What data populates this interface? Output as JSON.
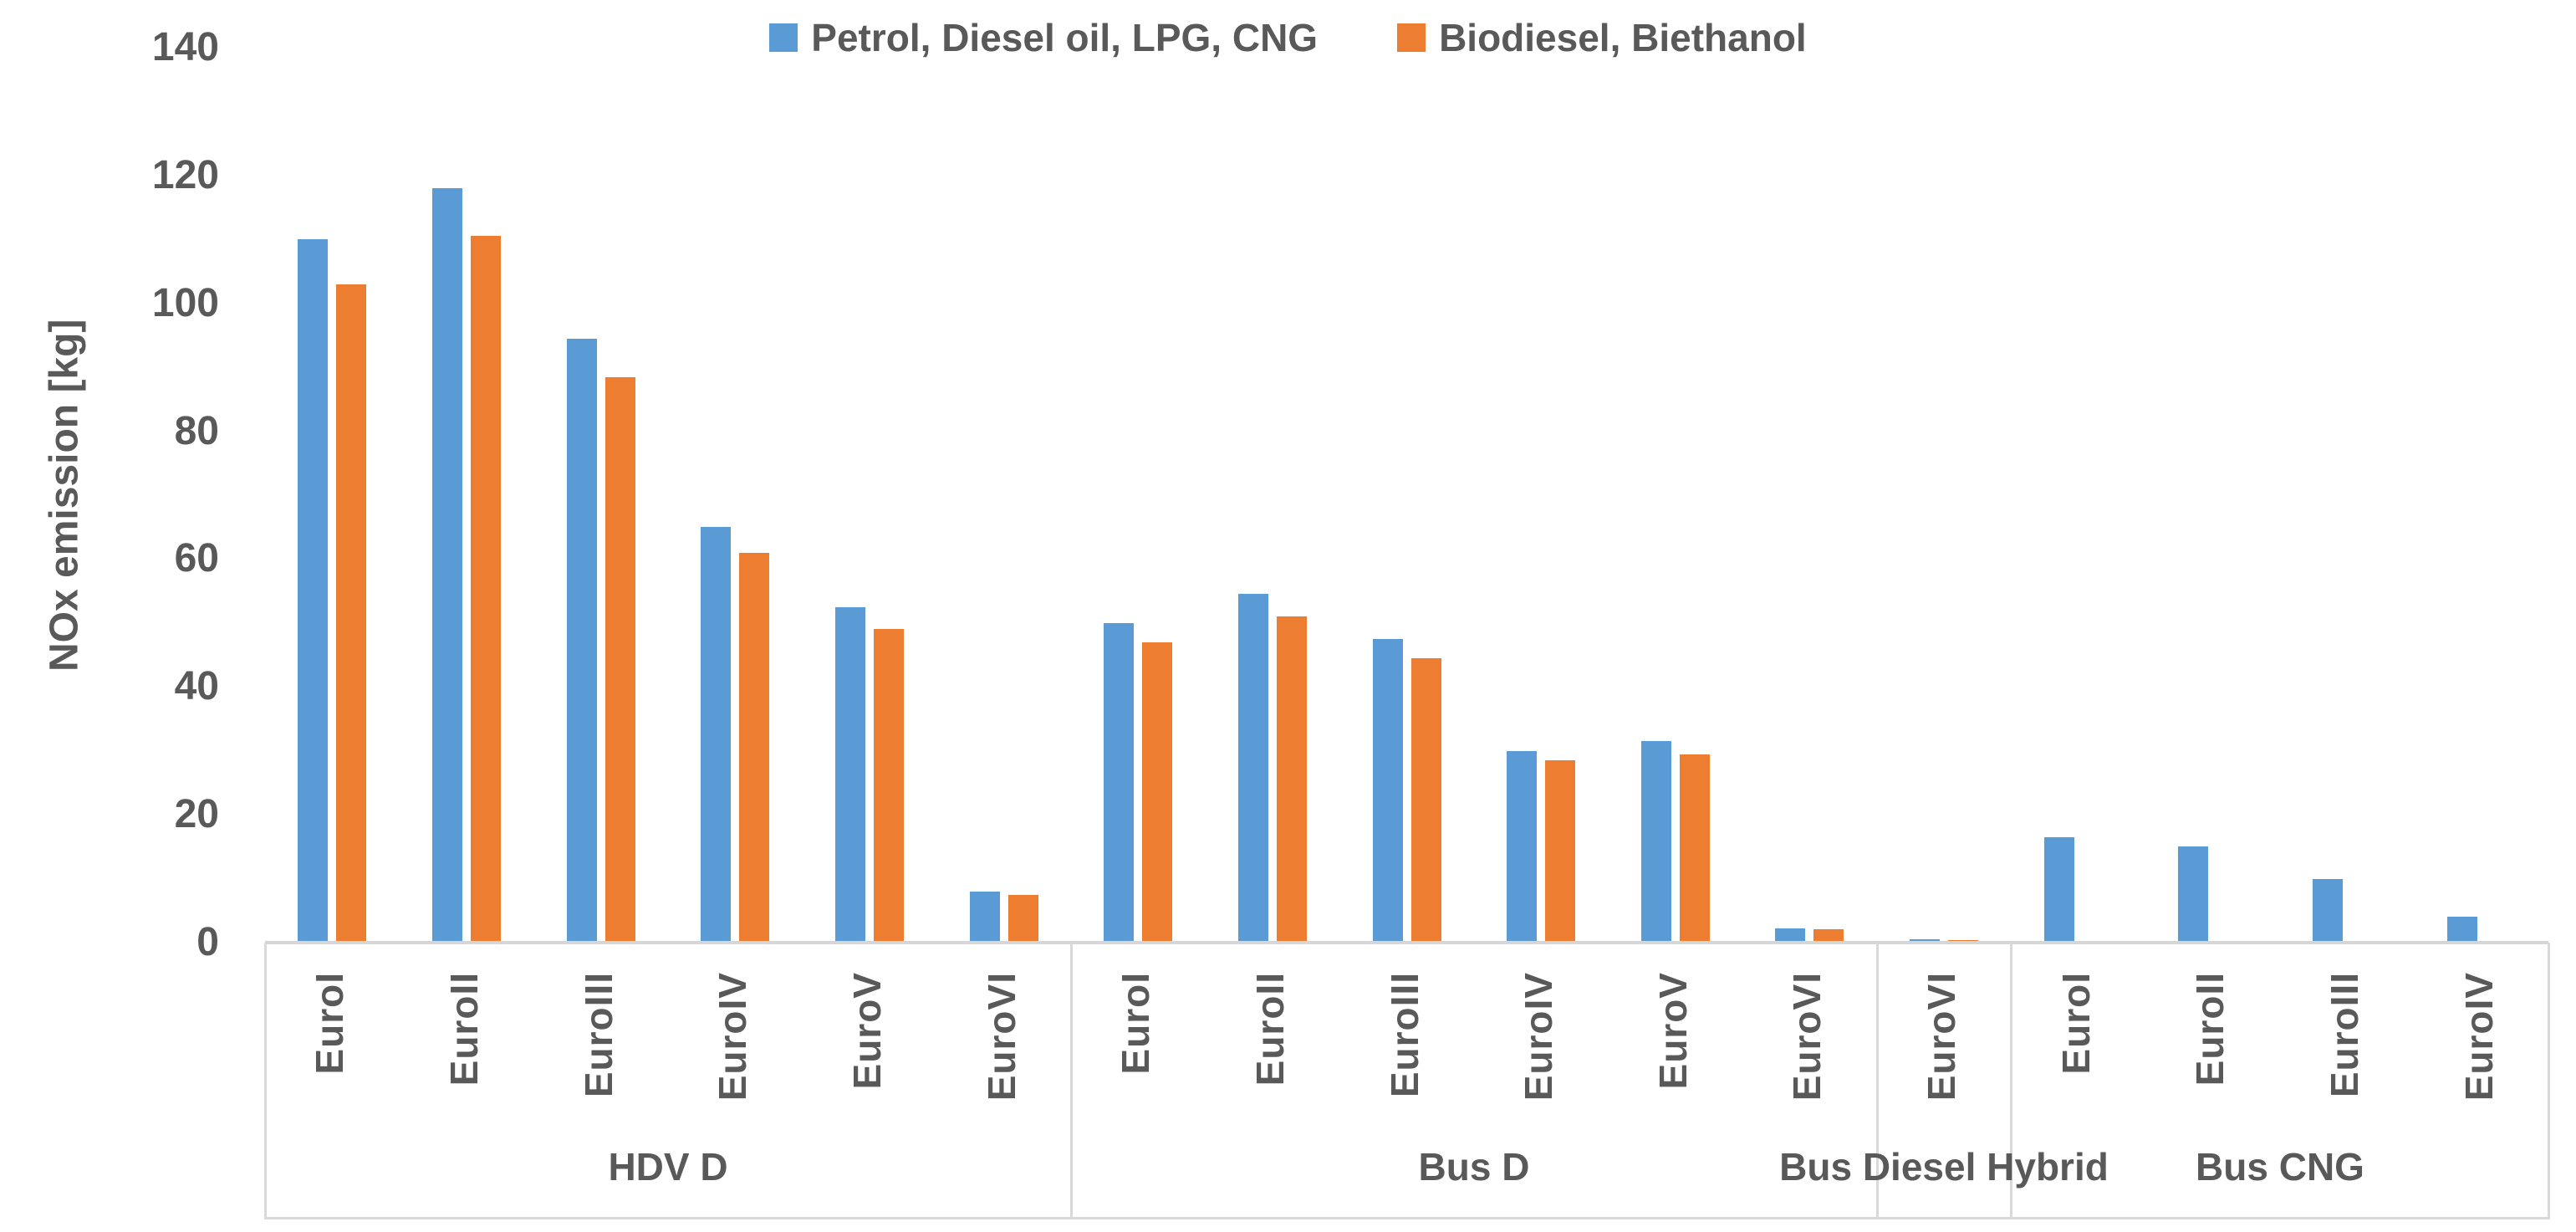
{
  "accent_colors": {
    "series1": "#5B9BD5",
    "series2": "#ED7D31",
    "text": "#595959",
    "axis": "#D6D6D6",
    "grid_box": "#D9D9D9"
  },
  "legend": {
    "entries": [
      {
        "label": "Petrol, Diesel oil, LPG, CNG",
        "color": "#5B9BD5"
      },
      {
        "label": "Biodiesel, Biethanol",
        "color": "#ED7D31"
      }
    ]
  },
  "chart_data": {
    "type": "bar",
    "title": "",
    "ylabel": "NOx emission [kg]",
    "ylim": [
      0,
      140
    ],
    "yticks": [
      0,
      20,
      40,
      60,
      80,
      100,
      120,
      140
    ],
    "grid": false,
    "legend_position": "top",
    "series": [
      {
        "name": "Petrol, Diesel oil, LPG, CNG",
        "color": "#5B9BD5"
      },
      {
        "name": "Biodiesel, Biethanol",
        "color": "#ED7D31"
      }
    ],
    "groups": [
      {
        "label": "HDV D",
        "categories": [
          "EuroI",
          "EuroII",
          "EuroIII",
          "EuroIV",
          "EuroV",
          "EuroVI"
        ],
        "values": [
          [
            110,
            103
          ],
          [
            118,
            110.5
          ],
          [
            94.5,
            88.5
          ],
          [
            65,
            61
          ],
          [
            52.5,
            49
          ],
          [
            8,
            7.5
          ]
        ]
      },
      {
        "label": "Bus D",
        "categories": [
          "EuroI",
          "EuroII",
          "EuroIII",
          "EuroIV",
          "EuroV",
          "EuroVI"
        ],
        "values": [
          [
            50,
            47
          ],
          [
            54.5,
            51
          ],
          [
            47.5,
            44.5
          ],
          [
            30,
            28.5
          ],
          [
            31.5,
            29.5
          ],
          [
            2.2,
            2.1
          ]
        ]
      },
      {
        "label": "Bus Diesel Hybrid",
        "categories": [
          "EuroVI"
        ],
        "values": [
          [
            0.5,
            0.4
          ]
        ]
      },
      {
        "label": "Bus CNG",
        "categories": [
          "EuroI",
          "EuroII",
          "EuroIII",
          "EuroIV"
        ],
        "values": [
          [
            16.5,
            0
          ],
          [
            15,
            0
          ],
          [
            10,
            0
          ],
          [
            4,
            0
          ]
        ]
      }
    ]
  }
}
